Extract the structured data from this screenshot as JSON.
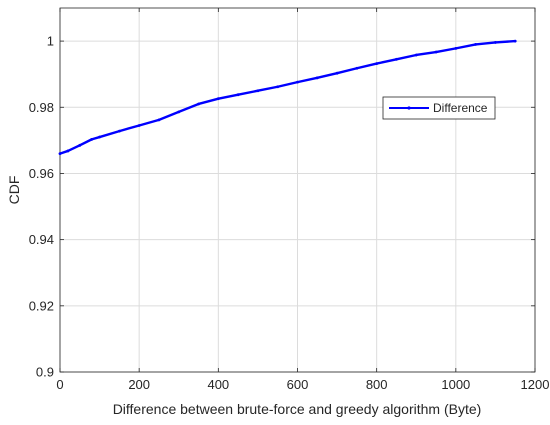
{
  "chart_data": {
    "type": "line",
    "title": "",
    "xlabel": "Difference between brute-force and greedy algorithm (Byte)",
    "ylabel": "CDF",
    "xlim": [
      0,
      1200
    ],
    "ylim": [
      0.9,
      1.01
    ],
    "xticks": [
      0,
      200,
      400,
      600,
      800,
      1000,
      1200
    ],
    "xtick_labels": [
      "0",
      "200",
      "400",
      "600",
      "800",
      "1000",
      "1200"
    ],
    "yticks": [
      0.9,
      0.92,
      0.94,
      0.96,
      0.98,
      1.0
    ],
    "ytick_labels": [
      "0.9",
      "0.92",
      "0.94",
      "0.96",
      "0.98",
      "1"
    ],
    "grid": true,
    "legend_position": "top-right",
    "series": [
      {
        "name": "Difference",
        "color": "#0000ff",
        "x": [
          0,
          20,
          50,
          80,
          100,
          150,
          200,
          250,
          300,
          350,
          400,
          450,
          500,
          550,
          600,
          650,
          700,
          750,
          800,
          850,
          900,
          950,
          1000,
          1050,
          1100,
          1150
        ],
        "y": [
          0.966,
          0.9668,
          0.9685,
          0.9703,
          0.971,
          0.9728,
          0.9745,
          0.9762,
          0.9786,
          0.981,
          0.9826,
          0.9838,
          0.985,
          0.9862,
          0.9876,
          0.9889,
          0.9903,
          0.9918,
          0.9932,
          0.9945,
          0.9958,
          0.9967,
          0.9978,
          0.999,
          0.9996,
          1.0
        ]
      }
    ]
  }
}
